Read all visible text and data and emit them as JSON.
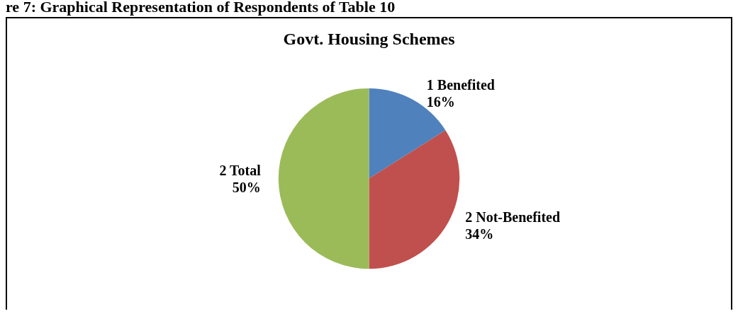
{
  "chart_data": {
    "type": "pie",
    "title": "Govt. Housing Schemes",
    "annotations": [
      "re 7: Graphical Representation of Respondents of Table 10"
    ],
    "categories": [
      "1 Benefited",
      "2 Not-Benefited",
      "2 Total"
    ],
    "values": [
      16,
      34,
      50
    ],
    "colors": [
      "#4f81bd",
      "#c0504d",
      "#9bbb59"
    ],
    "value_labels": [
      "16%",
      "34%",
      "50%"
    ],
    "legend": false
  }
}
